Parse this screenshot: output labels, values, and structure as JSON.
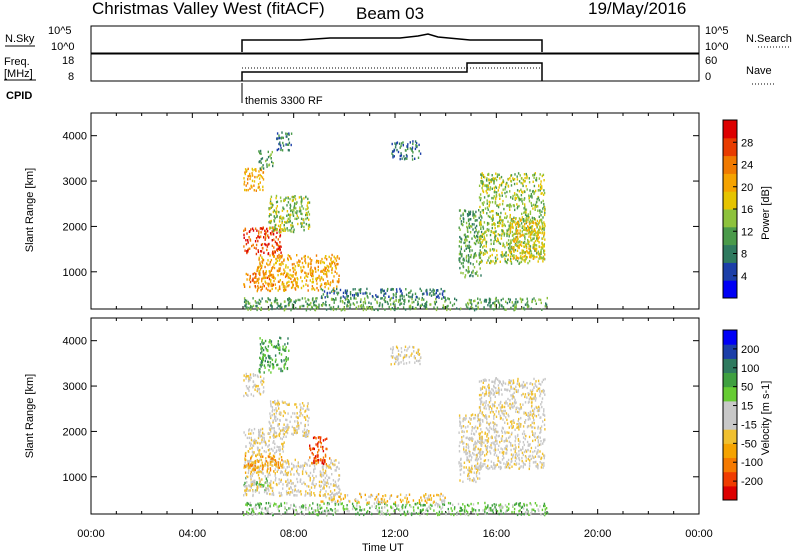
{
  "header": {
    "title": "Christmas Valley West (fitACF)",
    "beam": "Beam 03",
    "date": "19/May/2016"
  },
  "params": {
    "nsky_label": "N.Sky",
    "nsky_ticks": [
      "10^5",
      "10^0"
    ],
    "nsearch_label": "N.Search",
    "freq_label": "Freq.",
    "freq_unit": "[MHz]",
    "freq_ticks": [
      "18",
      "8"
    ],
    "nave_ticks": [
      "60",
      "0"
    ],
    "nave_label": "Nave",
    "cpid_label": "CPID",
    "cpid_name": "themis 3300 RF"
  },
  "colors": {
    "power_scale": [
      "#0000f5",
      "#1c3fa8",
      "#2f7a5f",
      "#4a9a4a",
      "#8dc23c",
      "#e6c400",
      "#f5a300",
      "#f07a00",
      "#e83c00",
      "#dd0000"
    ],
    "velocity_scale": [
      "#dd0000",
      "#f03c00",
      "#f57a00",
      "#f5a300",
      "#f0c030",
      "#c8c8c8",
      "#c8c8c8",
      "#66cc33",
      "#3fa040",
      "#2f7a5f",
      "#1c3fa8",
      "#0000f5"
    ]
  },
  "chart_data": [
    {
      "type": "line",
      "title": "N.Sky / N.Search",
      "x_range": [
        "06:00",
        "18:00"
      ],
      "ylabels": [
        "10^0",
        "10^5"
      ],
      "note": "N.Sky solid line near 10^0 between 06:00 and 18:00, slight bump near 13:30"
    },
    {
      "type": "line",
      "series": [
        {
          "name": "Freq.",
          "x": [
            "06:00",
            "15:00",
            "15:00",
            "18:00"
          ],
          "values": [
            10.5,
            10.5,
            14.5,
            14.5
          ]
        },
        {
          "name": "Nave",
          "x": [
            "06:00",
            "18:00"
          ],
          "values": [
            20,
            20
          ]
        }
      ],
      "ylim_freq": [
        8,
        18
      ],
      "ylim_nave": [
        0,
        60
      ]
    },
    {
      "type": "heatmap",
      "ylabel": "Slant Range [km]",
      "colorbar_label": "Power [dB]",
      "colorbar_ticks": [
        "4",
        "8",
        "12",
        "16",
        "20",
        "24",
        "28"
      ],
      "ylim": [
        180,
        4500
      ],
      "yticks": [
        "1000",
        "2000",
        "3000",
        "4000"
      ],
      "xticks": [
        "00:00",
        "04:00",
        "08:00",
        "12:00",
        "16:00",
        "20:00",
        "00:00"
      ],
      "regions": [
        {
          "t0": 6.0,
          "t1": 7.2,
          "r0": 650,
          "r1": 1000,
          "c": 7
        },
        {
          "t0": 6.5,
          "t1": 9.8,
          "r0": 600,
          "r1": 1400,
          "c": 6
        },
        {
          "t0": 6.0,
          "t1": 7.5,
          "r0": 1400,
          "r1": 2000,
          "c": 8
        },
        {
          "t0": 7.0,
          "t1": 8.6,
          "r0": 1900,
          "r1": 2700,
          "c": 4
        },
        {
          "t0": 6.0,
          "t1": 6.8,
          "r0": 2800,
          "r1": 3300,
          "c": 6
        },
        {
          "t0": 6.6,
          "t1": 7.2,
          "r0": 3300,
          "r1": 3700,
          "c": 3
        },
        {
          "t0": 7.3,
          "t1": 7.9,
          "r0": 3700,
          "r1": 4100,
          "c": 2
        },
        {
          "t0": 11.8,
          "t1": 13.0,
          "r0": 3500,
          "r1": 3900,
          "c": 2
        },
        {
          "t0": 14.5,
          "t1": 15.4,
          "r0": 900,
          "r1": 2400,
          "c": 3
        },
        {
          "t0": 15.3,
          "t1": 17.9,
          "r0": 1200,
          "r1": 3200,
          "c": 4
        },
        {
          "t0": 16.5,
          "t1": 17.9,
          "r0": 1300,
          "r1": 2200,
          "c": 5
        },
        {
          "t0": 6.0,
          "t1": 18.0,
          "r0": 180,
          "r1": 450,
          "c": 3
        },
        {
          "t0": 9.0,
          "t1": 14.0,
          "r0": 450,
          "r1": 650,
          "c": 2
        }
      ]
    },
    {
      "type": "heatmap",
      "ylabel": "Slant Range [km]",
      "xlabel": "Time UT",
      "colorbar_label": "Velocity [m s-1]",
      "colorbar_ticks": [
        "-200",
        "-100",
        "-50",
        "-15",
        "15",
        "50",
        "100",
        "200"
      ],
      "ylim": [
        180,
        4500
      ],
      "yticks": [
        "1000",
        "2000",
        "3000",
        "4000"
      ],
      "xticks": [
        "00:00",
        "04:00",
        "08:00",
        "12:00",
        "16:00",
        "20:00",
        "00:00"
      ],
      "regions": [
        {
          "t0": 6.0,
          "t1": 7.0,
          "r0": 700,
          "r1": 1000,
          "c": 7
        },
        {
          "t0": 6.0,
          "t1": 9.8,
          "r0": 600,
          "r1": 1400,
          "c": 5
        },
        {
          "t0": 6.0,
          "t1": 7.6,
          "r0": 1100,
          "r1": 1500,
          "c": 3
        },
        {
          "t0": 8.6,
          "t1": 9.4,
          "r0": 1300,
          "r1": 1900,
          "c": 1
        },
        {
          "t0": 6.0,
          "t1": 7.6,
          "r0": 1500,
          "r1": 2100,
          "c": 5
        },
        {
          "t0": 7.0,
          "t1": 8.6,
          "r0": 1900,
          "r1": 2700,
          "c": 5
        },
        {
          "t0": 6.0,
          "t1": 6.8,
          "r0": 2800,
          "r1": 3300,
          "c": 5
        },
        {
          "t0": 6.6,
          "t1": 7.8,
          "r0": 3300,
          "r1": 4100,
          "c": 8
        },
        {
          "t0": 11.8,
          "t1": 13.0,
          "r0": 3500,
          "r1": 3900,
          "c": 5
        },
        {
          "t0": 14.5,
          "t1": 15.4,
          "r0": 900,
          "r1": 2400,
          "c": 5
        },
        {
          "t0": 15.3,
          "t1": 17.9,
          "r0": 1200,
          "r1": 3200,
          "c": 5
        },
        {
          "t0": 6.0,
          "t1": 18.0,
          "r0": 180,
          "r1": 450,
          "c": 7
        },
        {
          "t0": 9.0,
          "t1": 14.0,
          "r0": 450,
          "r1": 650,
          "c": 4
        }
      ]
    }
  ]
}
